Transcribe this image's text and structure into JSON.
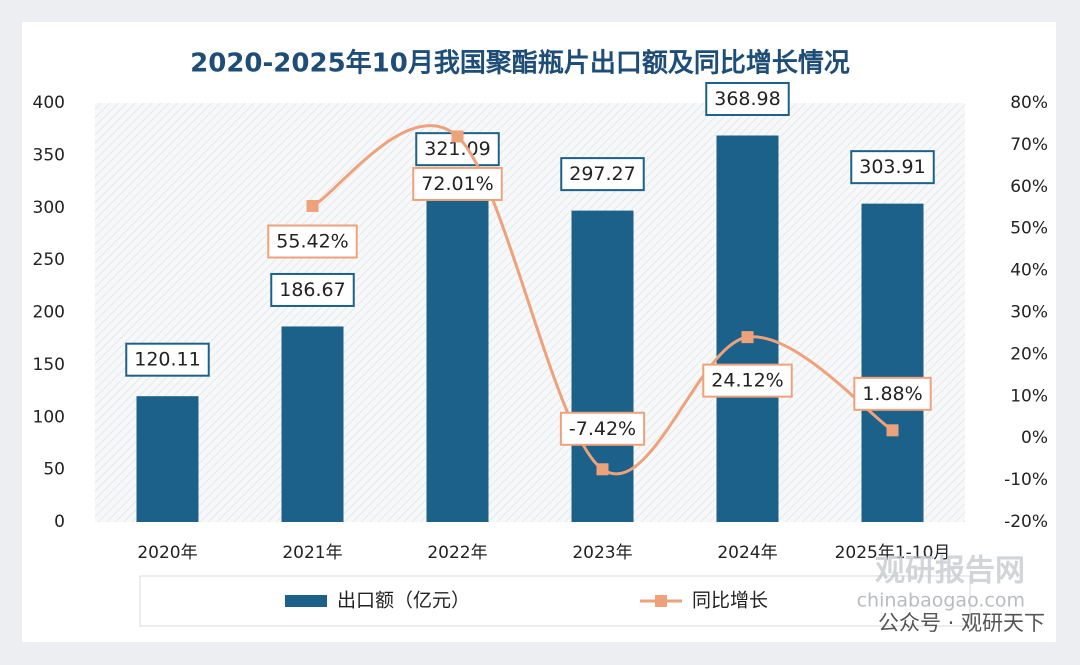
{
  "chart_data": {
    "type": "bar-line",
    "title": "2020-2025年10月我国聚酯瓶片出口额及同比增长情况",
    "categories": [
      "2020年",
      "2021年",
      "2022年",
      "2023年",
      "2024年",
      "2025年1-10月"
    ],
    "series": [
      {
        "name": "出口额（亿元）",
        "type": "bar",
        "color": "#1b6189",
        "values": [
          120.11,
          186.67,
          321.09,
          297.27,
          368.98,
          303.91
        ]
      },
      {
        "name": "同比增长",
        "type": "line",
        "axis": "y2",
        "color": "#eea27c",
        "values": [
          null,
          55.42,
          72.01,
          -7.42,
          24.12,
          1.88
        ],
        "value_labels": [
          null,
          "55.42%",
          "72.01%",
          "-7.42%",
          "24.12%",
          "1.88%"
        ]
      }
    ],
    "ylim": [
      0,
      400
    ],
    "yticks": [
      0,
      50,
      100,
      150,
      200,
      250,
      300,
      350,
      400
    ],
    "y2lim": [
      -20,
      80
    ],
    "y2ticks": [
      {
        "value": -20,
        "label": "-20%"
      },
      {
        "value": -10,
        "label": "-10%"
      },
      {
        "value": 0,
        "label": "0%"
      },
      {
        "value": 10,
        "label": "10%"
      },
      {
        "value": 20,
        "label": "20%"
      },
      {
        "value": 30,
        "label": "30%"
      },
      {
        "value": 40,
        "label": "40%"
      },
      {
        "value": 50,
        "label": "50%"
      },
      {
        "value": 60,
        "label": "60%"
      },
      {
        "value": 70,
        "label": "70%"
      },
      {
        "value": 80,
        "label": "80%"
      }
    ],
    "watermark": [
      "观研报告网",
      "chinabaogao.com",
      "公众号 · 观研天下"
    ]
  }
}
